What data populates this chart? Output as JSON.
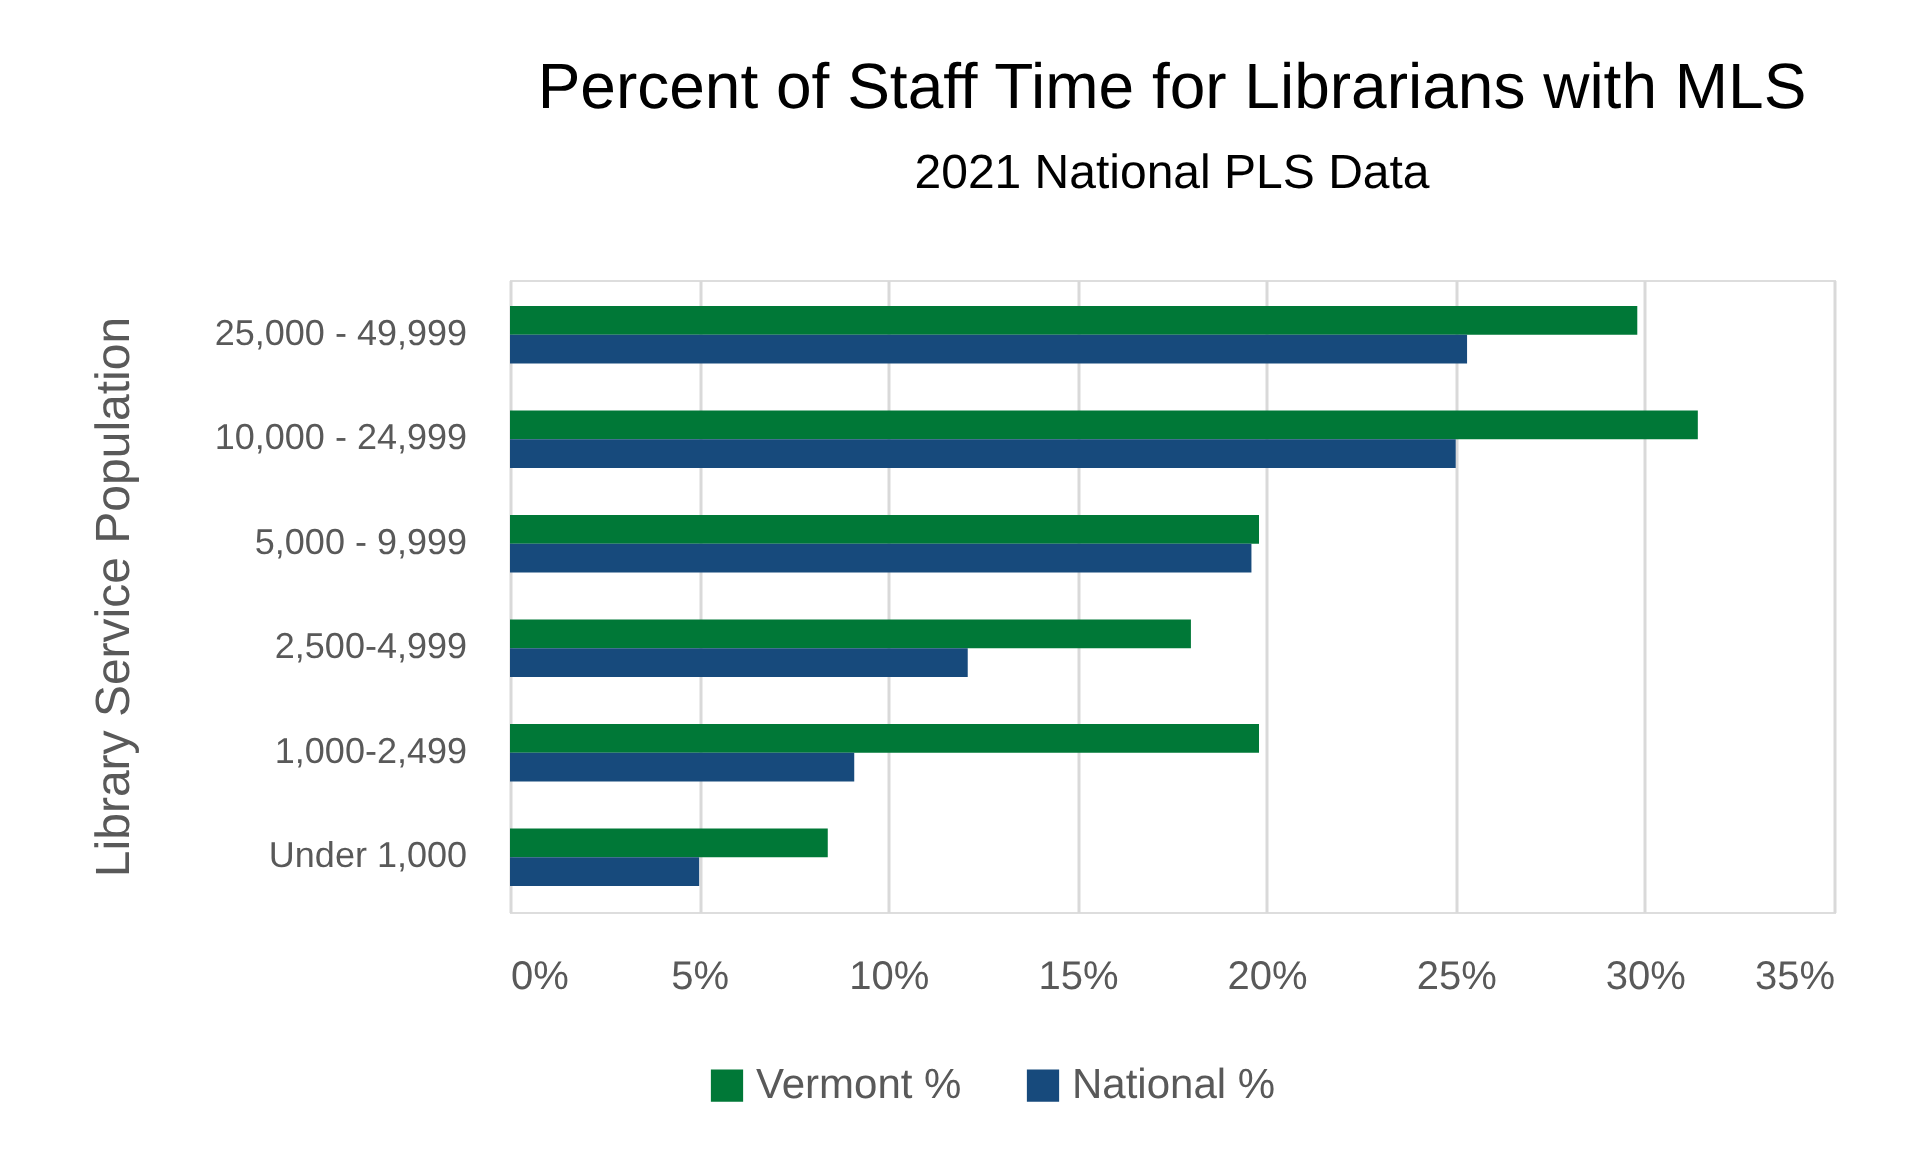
{
  "chart_data": {
    "type": "bar",
    "orientation": "horizontal",
    "title": "Percent of Staff Time for Librarians with MLS",
    "subtitle": "2021 National PLS Data",
    "ylabel": "Library Service Population",
    "categories": [
      "25,000 - 49,999",
      "10,000 - 24,999",
      "5,000 - 9,999",
      "2,500-4,999",
      "1,000-2,499",
      "Under 1,000"
    ],
    "series": [
      {
        "name": "Vermont %",
        "color": "#007837",
        "values": [
          29.8,
          31.4,
          19.8,
          18.0,
          19.8,
          8.4
        ]
      },
      {
        "name": "National %",
        "color": "#174a7c",
        "values": [
          25.3,
          25.0,
          19.6,
          12.1,
          9.1,
          5.0
        ]
      }
    ],
    "xlim": [
      0,
      35
    ],
    "xticks": [
      {
        "value": 0,
        "label": "0%"
      },
      {
        "value": 5,
        "label": "5%"
      },
      {
        "value": 10,
        "label": "10%"
      },
      {
        "value": 15,
        "label": "15%"
      },
      {
        "value": 20,
        "label": "20%"
      },
      {
        "value": 25,
        "label": "25%"
      },
      {
        "value": 30,
        "label": "30%"
      },
      {
        "value": 35,
        "label": "35%"
      }
    ],
    "grid": "x",
    "legend": "bottom"
  }
}
